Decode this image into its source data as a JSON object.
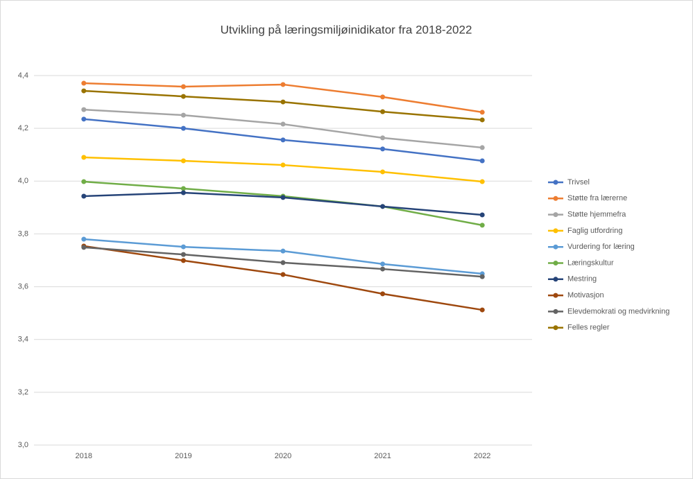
{
  "chart_data": {
    "type": "line",
    "title": "Utvikling på læringsmiljøinidikator fra 2018-2022",
    "categories": [
      "2018",
      "2019",
      "2020",
      "2021",
      "2022"
    ],
    "series": [
      {
        "name": "Trivsel",
        "color": "#4472c4",
        "values": [
          4.235,
          4.2,
          4.156,
          4.122,
          4.077
        ]
      },
      {
        "name": "Støtte fra lærerne",
        "color": "#ed7d31",
        "values": [
          4.371,
          4.358,
          4.366,
          4.319,
          4.261
        ]
      },
      {
        "name": "Støtte hjemmefra",
        "color": "#a5a5a5",
        "values": [
          4.271,
          4.25,
          4.216,
          4.164,
          4.127
        ]
      },
      {
        "name": "Faglig utfordring",
        "color": "#ffc000",
        "values": [
          4.09,
          4.077,
          4.061,
          4.035,
          3.998
        ]
      },
      {
        "name": "Vurdering for læring",
        "color": "#5b9bd5",
        "values": [
          3.78,
          3.751,
          3.735,
          3.686,
          3.649
        ]
      },
      {
        "name": "Læringskultur",
        "color": "#70ad47",
        "values": [
          3.998,
          3.972,
          3.943,
          3.904,
          3.833
        ]
      },
      {
        "name": "Mestring",
        "color": "#264478",
        "values": [
          3.943,
          3.956,
          3.938,
          3.904,
          3.872
        ]
      },
      {
        "name": "Motivasjon",
        "color": "#9e480e",
        "values": [
          3.754,
          3.699,
          3.646,
          3.573,
          3.512
        ]
      },
      {
        "name": "Elevdemokrati og medvirkning",
        "color": "#636363",
        "values": [
          3.749,
          3.722,
          3.691,
          3.667,
          3.638
        ]
      },
      {
        "name": "Felles regler",
        "color": "#997300",
        "values": [
          4.342,
          4.321,
          4.3,
          4.263,
          4.232
        ]
      }
    ],
    "ylim": [
      3.0,
      4.4
    ],
    "yticks": [
      {
        "value": 3.0,
        "label": "3,0"
      },
      {
        "value": 3.2,
        "label": "3,2"
      },
      {
        "value": 3.4,
        "label": "3,4"
      },
      {
        "value": 3.6,
        "label": "3,6"
      },
      {
        "value": 3.8,
        "label": "3,8"
      },
      {
        "value": 4.0,
        "label": "4,0"
      },
      {
        "value": 4.2,
        "label": "4,2"
      },
      {
        "value": 4.4,
        "label": "4,4"
      }
    ],
    "grid": true,
    "legend": "right"
  }
}
